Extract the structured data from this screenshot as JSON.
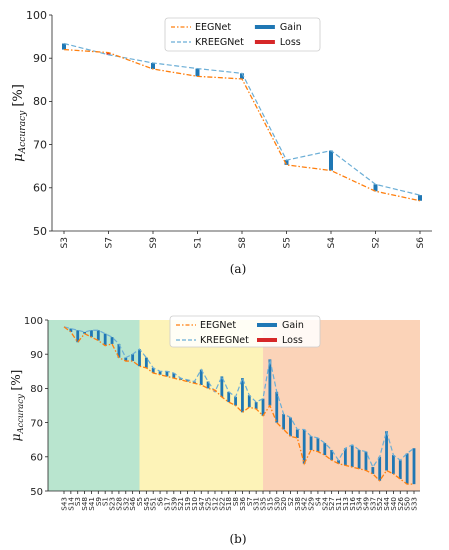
{
  "chart_data": [
    {
      "type": "line",
      "caption": "(a)",
      "ylabel": "μ",
      "ylabel_sub": "Accuracy",
      "ylabel_unit": "[%]",
      "ylim": [
        50,
        100
      ],
      "yticks": [
        50,
        60,
        70,
        80,
        90,
        100
      ],
      "categories": [
        "S3",
        "S7",
        "S9",
        "S1",
        "S8",
        "S5",
        "S4",
        "S2",
        "S6"
      ],
      "series": [
        {
          "name": "EEGNet",
          "color": "#ff7f0e",
          "style": "dash-dot",
          "values": [
            92.0,
            91.3,
            87.5,
            85.8,
            85.2,
            65.3,
            64.0,
            59.2,
            57.0
          ]
        },
        {
          "name": "KREEGNet",
          "color": "#6baed6",
          "style": "dashed",
          "values": [
            93.4,
            90.8,
            88.9,
            87.6,
            86.5,
            66.4,
            68.6,
            60.8,
            58.3
          ]
        }
      ],
      "legend": {
        "position": "top-center",
        "gain": "Gain",
        "loss": "Loss",
        "gain_color": "#1f77b4",
        "loss_color": "#d62728"
      }
    },
    {
      "type": "line",
      "caption": "(b)",
      "ylabel": "μ",
      "ylabel_sub": "Accuracy",
      "ylabel_unit": "[%]",
      "ylim": [
        50,
        100
      ],
      "yticks": [
        50,
        60,
        70,
        80,
        90,
        100
      ],
      "categories": [
        "S43",
        "S14",
        "S3",
        "S48",
        "S41",
        "S9",
        "S1",
        "S23",
        "S28",
        "S32",
        "S46",
        "S5",
        "S45",
        "S51",
        "S6",
        "S17",
        "S39",
        "S21",
        "S19",
        "S10",
        "S47",
        "S25",
        "S12",
        "S22",
        "S18",
        "S8",
        "S36",
        "S7",
        "S31",
        "S35",
        "S15",
        "S30",
        "S20",
        "S2",
        "S38",
        "S42",
        "S29",
        "S4",
        "S24",
        "S27",
        "S11",
        "S13",
        "S16",
        "S34",
        "S49",
        "S37",
        "S52",
        "S44",
        "S40",
        "S26",
        "S50",
        "S33"
      ],
      "series": [
        {
          "name": "EEGNet",
          "color": "#ff7f0e",
          "style": "dash-dot",
          "values": [
            98.0,
            96.5,
            93.5,
            96.0,
            95.0,
            94.0,
            92.5,
            93.0,
            89.0,
            88.0,
            88.0,
            86.5,
            86.0,
            84.5,
            84.0,
            83.5,
            83.0,
            82.5,
            82.0,
            81.5,
            81.0,
            80.0,
            79.5,
            77.5,
            76.0,
            75.0,
            73.0,
            74.5,
            74.0,
            72.0,
            75.0,
            70.0,
            68.0,
            66.0,
            65.5,
            58.0,
            62.0,
            61.5,
            60.5,
            59.0,
            58.0,
            57.5,
            57.0,
            56.5,
            56.0,
            55.0,
            53.0,
            56.0,
            55.0,
            53.5,
            52.0,
            52.0
          ]
        },
        {
          "name": "KREEGNet",
          "color": "#6baed6",
          "style": "dashed",
          "values": [
            98.0,
            97.5,
            97.0,
            96.5,
            97.0,
            97.0,
            96.0,
            95.0,
            93.0,
            89.0,
            90.0,
            91.5,
            89.0,
            86.0,
            85.0,
            85.0,
            84.5,
            83.0,
            82.5,
            82.0,
            85.5,
            82.0,
            79.0,
            83.5,
            79.0,
            77.5,
            83.0,
            78.0,
            76.0,
            77.0,
            88.5,
            79.0,
            72.5,
            71.5,
            68.0,
            68.0,
            66.0,
            65.5,
            64.0,
            62.0,
            59.0,
            62.5,
            63.5,
            62.0,
            61.5,
            57.0,
            60.0,
            67.5,
            60.5,
            59.0,
            61.0,
            62.5
          ]
        }
      ],
      "regions": [
        {
          "from": 0,
          "to": 11,
          "color": "#b9e5cf"
        },
        {
          "from": 11,
          "to": 29,
          "color": "#fdf3b8"
        },
        {
          "from": 29,
          "to": 51,
          "color": "#fbd3b8"
        }
      ],
      "legend": {
        "position": "top-center",
        "gain": "Gain",
        "loss": "Loss",
        "gain_color": "#1f77b4",
        "loss_color": "#d62728"
      }
    }
  ]
}
